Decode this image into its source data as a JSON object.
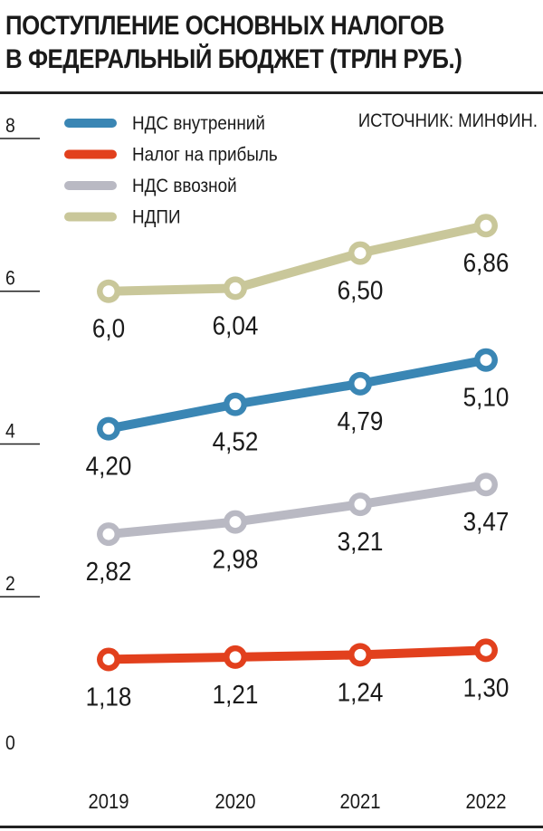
{
  "title_lines": [
    "ПОСТУПЛЕНИЕ ОСНОВНЫХ НАЛОГОВ",
    "В ФЕДЕРАЛЬНЫЙ БЮДЖЕТ (ТРЛН РУБ.)"
  ],
  "source": "ИСТОЧНИК: МИНФИН.",
  "chart_data": {
    "type": "line",
    "x": [
      "2019",
      "2020",
      "2021",
      "2022"
    ],
    "ylim": [
      0,
      8
    ],
    "yticks": [
      "0",
      "2",
      "4",
      "6",
      "8"
    ],
    "grid": false,
    "legend_position": "top-left",
    "series": [
      {
        "name": "НДС внутренний",
        "values": [
          4.2,
          4.52,
          4.79,
          5.1
        ],
        "labels": [
          "4,20",
          "4,52",
          "4,79",
          "5,10"
        ],
        "color": "#3a86b4",
        "label_side": [
          "below",
          "below",
          "below",
          "below"
        ]
      },
      {
        "name": "Налог на прибыль",
        "values": [
          1.18,
          1.21,
          1.24,
          1.3
        ],
        "labels": [
          "1,18",
          "1,21",
          "1,24",
          "1,30"
        ],
        "color": "#e2401d",
        "label_side": [
          "below",
          "below",
          "below",
          "below"
        ]
      },
      {
        "name": "НДС ввозной",
        "values": [
          2.82,
          2.98,
          3.21,
          3.47
        ],
        "labels": [
          "2,82",
          "2,98",
          "3,21",
          "3,47"
        ],
        "color": "#b9b9c3",
        "label_side": [
          "below",
          "below",
          "below",
          "below"
        ]
      },
      {
        "name": "НДПИ",
        "values": [
          6.0,
          6.04,
          6.5,
          6.86
        ],
        "labels": [
          "6,0",
          "6,04",
          "6,50",
          "6,86"
        ],
        "color": "#c9c79a",
        "label_side": [
          "below",
          "below",
          "below",
          "below"
        ]
      }
    ]
  }
}
